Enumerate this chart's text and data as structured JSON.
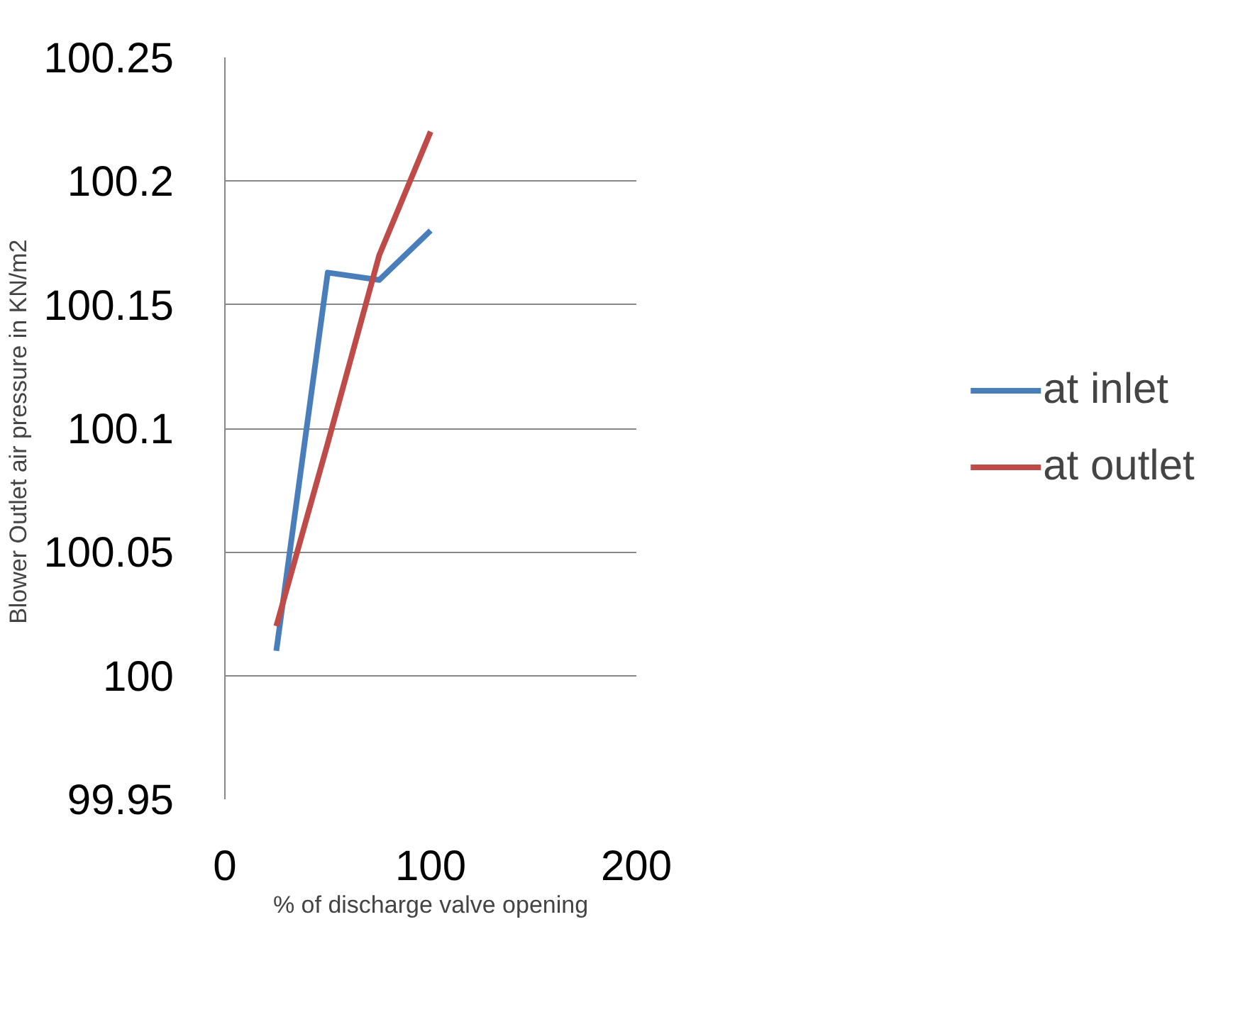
{
  "chart_data": {
    "type": "line",
    "xlabel": "% of discharge valve opening",
    "ylabel": "Blower  Outlet air pressure in KN/m2",
    "x": [
      25,
      50,
      75,
      100
    ],
    "series": [
      {
        "name": "at inlet",
        "color": "#4a7ebb",
        "values": [
          100.01,
          100.163,
          100.16,
          100.18
        ]
      },
      {
        "name": "at outlet",
        "color": "#be4b48",
        "values": [
          100.02,
          100.094,
          100.17,
          100.22
        ]
      }
    ],
    "xlim": [
      0,
      200
    ],
    "xticks": [
      0,
      100,
      200
    ],
    "ylim": [
      99.95,
      100.25
    ],
    "yticks": [
      99.95,
      100,
      100.05,
      100.1,
      100.15,
      100.2,
      100.25
    ],
    "grid": "y",
    "legend": "right",
    "marker": "none",
    "line_style": "solid"
  }
}
